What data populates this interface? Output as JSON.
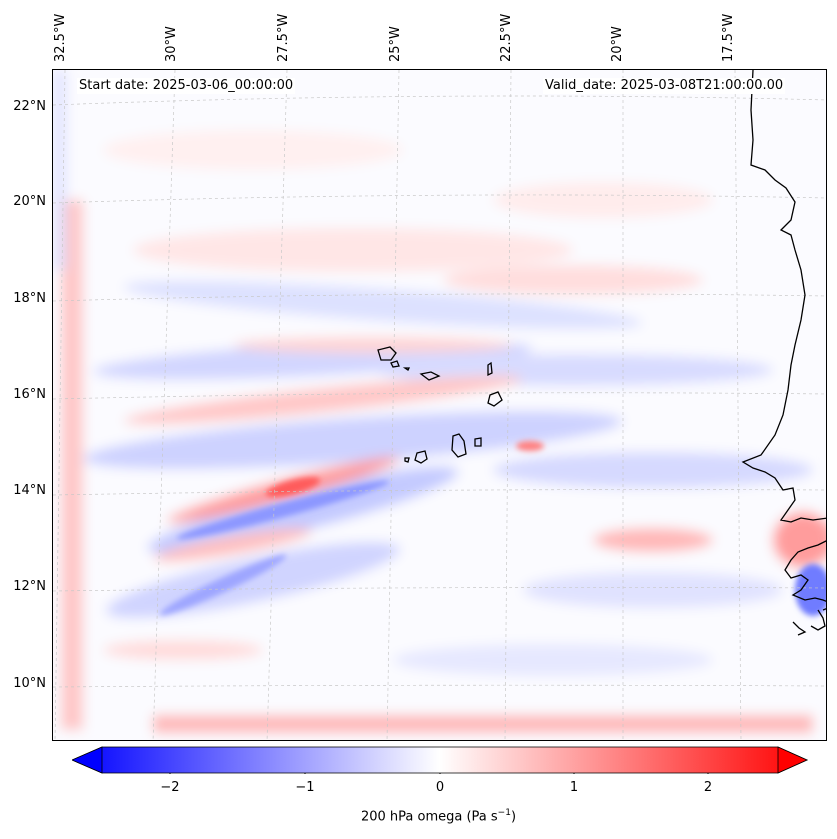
{
  "header": {
    "start_date": "Start date: 2025-03-06_00:00:00",
    "valid_date": "Valid_date: 2025-03-08T21:00:00.00"
  },
  "latitude_labels": [
    "22°N",
    "20°N",
    "18°N",
    "16°N",
    "14°N",
    "12°N",
    "10°N"
  ],
  "longitude_labels": [
    "32.5°W",
    "30°W",
    "27.5°W",
    "25°W",
    "22.5°W",
    "20°W",
    "17.5°W"
  ],
  "colorbar": {
    "ticks": [
      "−2",
      "−1",
      "0",
      "1",
      "2"
    ],
    "label": "200 hPa omega (Pa s",
    "label_sup": "−1",
    "label_end": ")",
    "min_color": "#0000ff",
    "mid_color": "#ffffff",
    "max_color": "#ff0000"
  },
  "map": {
    "region": "Cape Verde / West African coast",
    "features": [
      "Cape Verde islands",
      "West Africa coastline"
    ]
  }
}
